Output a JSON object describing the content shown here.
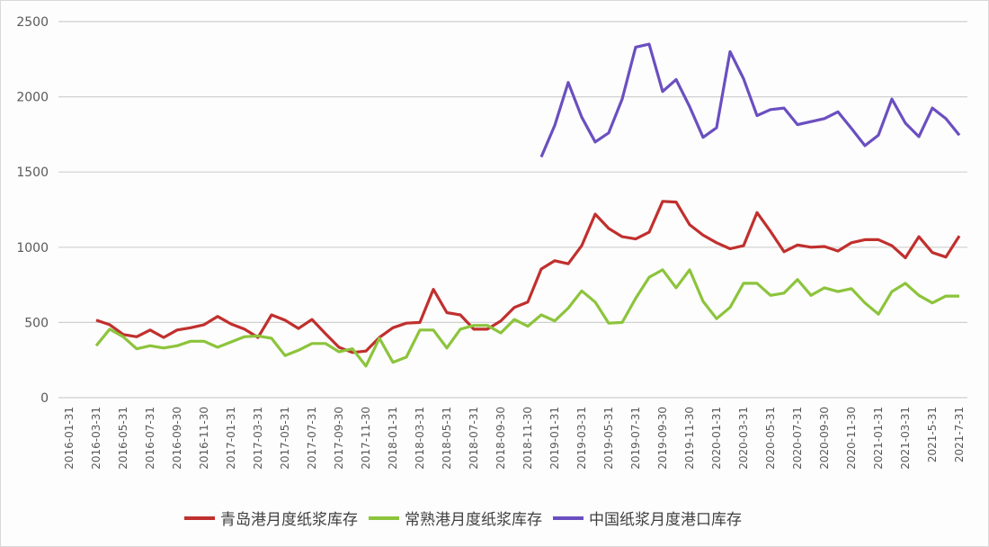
{
  "chart_data": {
    "type": "line",
    "title": "",
    "xlabel": "",
    "ylabel": "",
    "ylim": [
      0,
      2500
    ],
    "yticks": [
      0,
      500,
      1000,
      1500,
      2000,
      2500
    ],
    "grid": true,
    "legend_position": "bottom",
    "x_tick_labels": [
      "2016-01-31",
      "2016-03-31",
      "2016-05-31",
      "2016-07-31",
      "2016-09-30",
      "2016-11-30",
      "2017-01-31",
      "2017-03-31",
      "2017-05-31",
      "2017-07-31",
      "2017-09-30",
      "2017-11-30",
      "2018-01-31",
      "2018-03-31",
      "2018-05-31",
      "2018-07-31",
      "2018-09-30",
      "2018-11-30",
      "2019-01-31",
      "2019-03-31",
      "2019-05-31",
      "2019-07-31",
      "2019-09-30",
      "2019-11-30",
      "2020-01-31",
      "2020-03-31",
      "2020-05-31",
      "2020-07-31",
      "2020-09-30",
      "2020-11-30",
      "2021-01-31",
      "2021-03-31",
      "2021-5-31",
      "2021-7-31"
    ],
    "x_start_month": "2016-03",
    "series": [
      {
        "name": "青岛港月度纸浆库存",
        "color": "#c0302e",
        "start_index": 0,
        "values": [
          515,
          485,
          420,
          405,
          450,
          400,
          450,
          465,
          485,
          540,
          490,
          455,
          400,
          550,
          515,
          460,
          520,
          425,
          335,
          300,
          310,
          400,
          465,
          495,
          500,
          720,
          565,
          550,
          455,
          455,
          510,
          600,
          635,
          855,
          910,
          890,
          1010,
          1220,
          1125,
          1070,
          1055,
          1100,
          1305,
          1300,
          1150,
          1080,
          1030,
          990,
          1010,
          1230,
          1105,
          970,
          1015,
          1000,
          1005,
          975,
          1030,
          1050,
          1050,
          1010,
          930,
          1070,
          965,
          935,
          1075
        ]
      },
      {
        "name": "常熟港月度纸浆库存",
        "color": "#8cc43c",
        "start_index": 0,
        "values": [
          345,
          455,
          405,
          325,
          345,
          330,
          345,
          375,
          375,
          335,
          370,
          405,
          410,
          395,
          280,
          315,
          360,
          360,
          305,
          325,
          210,
          395,
          235,
          270,
          450,
          450,
          330,
          455,
          480,
          480,
          430,
          520,
          475,
          550,
          510,
          595,
          710,
          635,
          495,
          500,
          660,
          800,
          850,
          730,
          850,
          640,
          525,
          600,
          760,
          760,
          680,
          695,
          785,
          680,
          730,
          705,
          725,
          630,
          555,
          705,
          760,
          680,
          630,
          675,
          675
        ]
      },
      {
        "name": "中国纸浆月度港口库存",
        "color": "#6b4fc0",
        "start_index": 33,
        "values": [
          1600,
          1810,
          2095,
          1865,
          1700,
          1760,
          1985,
          2330,
          2350,
          2035,
          2115,
          1935,
          1730,
          1795,
          2300,
          2120,
          1875,
          1915,
          1925,
          1815,
          1835,
          1855,
          1900,
          1790,
          1675,
          1745,
          1985,
          1825,
          1735,
          1925,
          1855,
          1745
        ]
      }
    ]
  },
  "legend": {
    "items": [
      {
        "label": "青岛港月度纸浆库存",
        "color": "#c0302e"
      },
      {
        "label": "常熟港月度纸浆库存",
        "color": "#8cc43c"
      },
      {
        "label": "中国纸浆月度港口库存",
        "color": "#6b4fc0"
      }
    ]
  }
}
